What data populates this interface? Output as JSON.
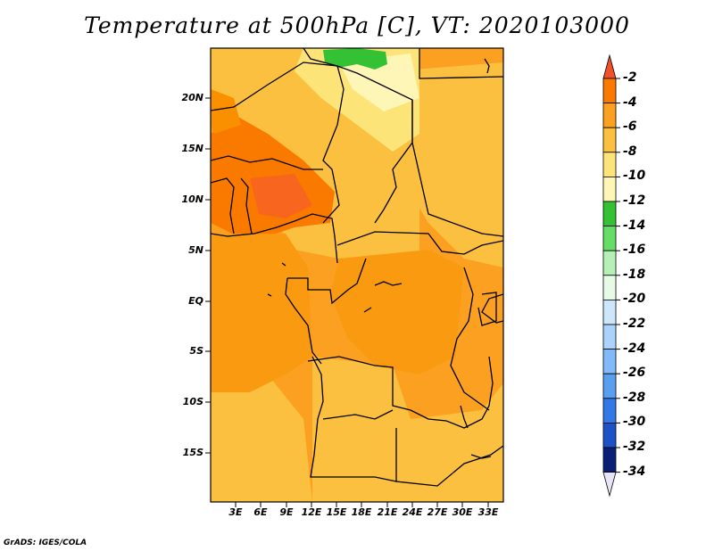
{
  "title": "Temperature at 500hPa [C], VT: 2020103000",
  "credit": "GrADS: IGES/COLA",
  "y_axis_labels": [
    "20N",
    "15N",
    "10N",
    "5N",
    "EQ",
    "5S",
    "10S",
    "15S"
  ],
  "x_axis_labels": [
    "3E",
    "6E",
    "9E",
    "12E",
    "15E",
    "18E",
    "21E",
    "24E",
    "27E",
    "30E",
    "33E"
  ],
  "colorbar": {
    "labels": [
      "-2",
      "-4",
      "-6",
      "-8",
      "-10",
      "-12",
      "-14",
      "-16",
      "-18",
      "-20",
      "-22",
      "-24",
      "-26",
      "-28",
      "-30",
      "-32",
      "-34"
    ],
    "colors": [
      "#f0502a",
      "#fa7a00",
      "#fba020",
      "#fcc040",
      "#fde478",
      "#fef6b6",
      "#34c234",
      "#66dd66",
      "#b6f0b6",
      "#e6fae6",
      "#cde6fa",
      "#aad2fa",
      "#82b9f8",
      "#5a9ef0",
      "#3278e6",
      "#1e50c8",
      "#0a1e78",
      "#e8e4f8"
    ]
  },
  "map": {
    "variable": "Temperature at 500hPa",
    "units": "C",
    "valid_time": "2020103000",
    "lat_range": [
      -20,
      24
    ],
    "lon_range": [
      0,
      34
    ]
  }
}
